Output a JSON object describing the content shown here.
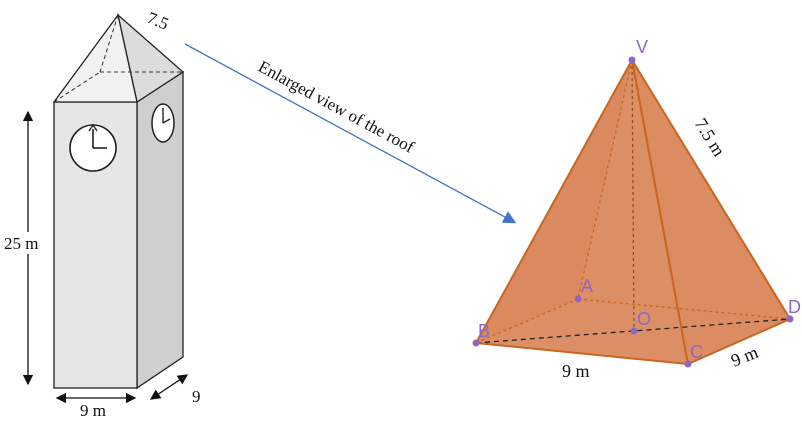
{
  "tower": {
    "roof_edge_label": "7.5",
    "height_label": "25 m",
    "front_width_label": "9 m",
    "side_width_label": "9"
  },
  "arrow_caption": "Enlarged view of the roof",
  "pyramid": {
    "apex": "V",
    "vertices": [
      "A",
      "B",
      "C",
      "D"
    ],
    "center": "O",
    "slant_edge_label": "7.5 m",
    "base_front_label": "9 m",
    "base_side_label": "9 m"
  },
  "colors": {
    "pyramid_fill": "#d9865a",
    "pyramid_edge": "#c8651f",
    "point_color": "#8e66c4",
    "arrow_color": "#4472c4",
    "tower_side": "#cfcfcf",
    "tower_front": "#e6e6e6"
  }
}
